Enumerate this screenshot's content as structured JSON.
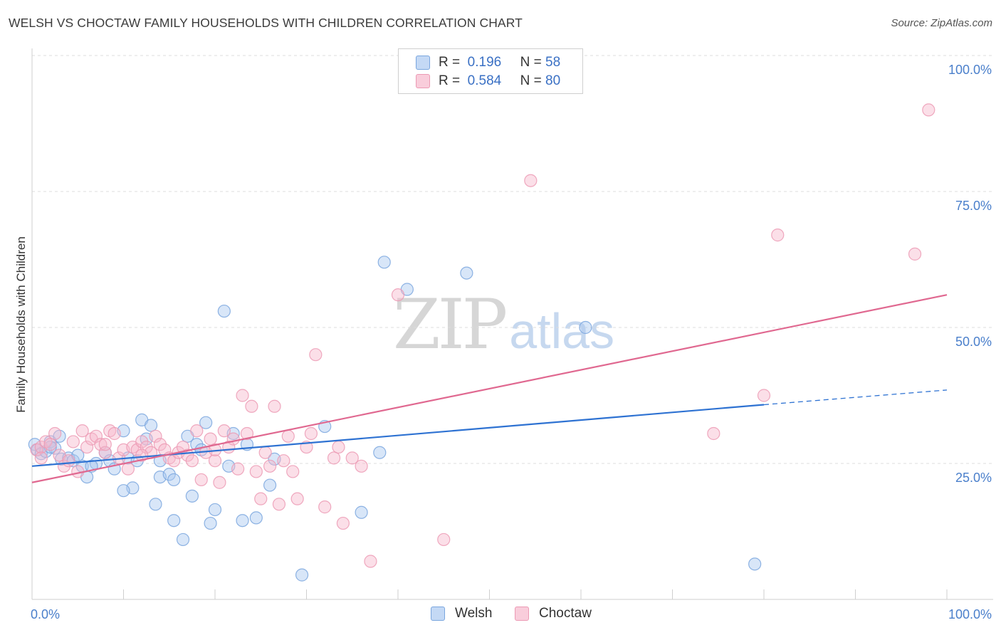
{
  "header": {
    "title": "WELSH VS CHOCTAW FAMILY HOUSEHOLDS WITH CHILDREN CORRELATION CHART",
    "source": "Source: ZipAtlas.com"
  },
  "watermark": {
    "zip": "ZIP",
    "atlas": "atlas"
  },
  "legend": {
    "rows": [
      {
        "r_label": "R =",
        "r_value": "0.196",
        "n_label": "N =",
        "n_value": "58"
      },
      {
        "r_label": "R =",
        "r_value": "0.584",
        "n_label": "N =",
        "n_value": "80"
      }
    ],
    "bottom": [
      "Welsh",
      "Choctaw"
    ]
  },
  "colors": {
    "welsh_fill": "#a9c8f0",
    "welsh_stroke": "#7aa6de",
    "welsh_line": "#2e72d2",
    "choctaw_fill": "#f6b8cb",
    "choctaw_stroke": "#ec9ab4",
    "choctaw_line": "#e06890",
    "grid": "#dcdcdc",
    "tick_text": "#4a7fcb"
  },
  "chart_data": {
    "type": "scatter",
    "title": "WELSH VS CHOCTAW FAMILY HOUSEHOLDS WITH CHILDREN CORRELATION CHART",
    "xlabel": "",
    "ylabel": "Family Households with Children",
    "xlim": [
      0,
      100
    ],
    "ylim": [
      0,
      100
    ],
    "x_tick_labels": [
      "0.0%",
      "100.0%"
    ],
    "y_ticks": [
      25,
      50,
      75,
      100
    ],
    "y_tick_labels": [
      "25.0%",
      "50.0%",
      "75.0%",
      "100.0%"
    ],
    "grid": true,
    "legend_position": "top-center",
    "series": [
      {
        "name": "Welsh",
        "R": 0.196,
        "N": 58,
        "trend": {
          "x": [
            0,
            80
          ],
          "y": [
            24.5,
            35.8
          ],
          "dashed_to": [
            100,
            38.5
          ]
        },
        "points": [
          [
            0.3,
            28.5
          ],
          [
            0.6,
            27.5
          ],
          [
            1.0,
            26.8
          ],
          [
            1.5,
            27.2
          ],
          [
            2.0,
            29.0
          ],
          [
            2.5,
            27.8
          ],
          [
            3.0,
            30.0
          ],
          [
            3.2,
            25.8
          ],
          [
            4.0,
            26.0
          ],
          [
            4.5,
            25.5
          ],
          [
            5.0,
            26.5
          ],
          [
            5.5,
            24.5
          ],
          [
            6.0,
            22.5
          ],
          [
            7.0,
            25.0
          ],
          [
            8.0,
            27.0
          ],
          [
            8.5,
            25.5
          ],
          [
            9.0,
            24.0
          ],
          [
            10.0,
            31.0
          ],
          [
            10.5,
            26.0
          ],
          [
            11.0,
            20.5
          ],
          [
            11.5,
            25.5
          ],
          [
            12.0,
            33.0
          ],
          [
            12.5,
            29.5
          ],
          [
            13.0,
            32.0
          ],
          [
            13.5,
            17.5
          ],
          [
            14.0,
            22.5
          ],
          [
            15.0,
            23.0
          ],
          [
            15.5,
            22.0
          ],
          [
            15.5,
            14.5
          ],
          [
            16.5,
            11.0
          ],
          [
            17.0,
            30.0
          ],
          [
            17.5,
            19.0
          ],
          [
            18.0,
            28.5
          ],
          [
            18.5,
            27.5
          ],
          [
            19.0,
            32.5
          ],
          [
            19.5,
            14.0
          ],
          [
            20.0,
            16.5
          ],
          [
            21.0,
            53.0
          ],
          [
            21.5,
            24.5
          ],
          [
            22.0,
            30.5
          ],
          [
            23.0,
            14.5
          ],
          [
            23.5,
            28.5
          ],
          [
            24.5,
            15.0
          ],
          [
            26.0,
            21.0
          ],
          [
            26.5,
            25.8
          ],
          [
            29.5,
            4.5
          ],
          [
            32.0,
            31.8
          ],
          [
            36.0,
            16.0
          ],
          [
            38.0,
            27.0
          ],
          [
            38.5,
            62.0
          ],
          [
            41.0,
            57.0
          ],
          [
            47.5,
            60.0
          ],
          [
            60.5,
            50.0
          ],
          [
            79.0,
            6.5
          ],
          [
            10.0,
            20.0
          ],
          [
            6.5,
            24.5
          ],
          [
            2.0,
            28.0
          ],
          [
            14.0,
            25.5
          ]
        ]
      },
      {
        "name": "Choctaw",
        "R": 0.584,
        "N": 80,
        "trend": {
          "x": [
            0,
            100
          ],
          "y": [
            21.5,
            56.0
          ]
        },
        "points": [
          [
            0.5,
            27.5
          ],
          [
            1.0,
            28.0
          ],
          [
            1.5,
            29.0
          ],
          [
            2.0,
            28.5
          ],
          [
            2.5,
            30.5
          ],
          [
            3.0,
            26.5
          ],
          [
            3.5,
            24.5
          ],
          [
            4.0,
            25.5
          ],
          [
            4.5,
            29.0
          ],
          [
            5.0,
            23.5
          ],
          [
            5.5,
            31.0
          ],
          [
            6.0,
            28.0
          ],
          [
            6.5,
            29.5
          ],
          [
            7.0,
            30.0
          ],
          [
            7.5,
            28.5
          ],
          [
            8.0,
            27.0
          ],
          [
            8.5,
            31.0
          ],
          [
            9.0,
            30.5
          ],
          [
            9.5,
            26.0
          ],
          [
            10.0,
            27.5
          ],
          [
            10.5,
            24.0
          ],
          [
            11.0,
            28.0
          ],
          [
            11.5,
            27.5
          ],
          [
            12.0,
            29.0
          ],
          [
            12.5,
            28.0
          ],
          [
            13.0,
            27.0
          ],
          [
            13.5,
            30.0
          ],
          [
            14.0,
            28.5
          ],
          [
            14.5,
            27.5
          ],
          [
            15.0,
            26.0
          ],
          [
            15.5,
            25.5
          ],
          [
            16.0,
            27.0
          ],
          [
            16.5,
            28.0
          ],
          [
            17.0,
            26.5
          ],
          [
            17.5,
            25.5
          ],
          [
            18.0,
            31.0
          ],
          [
            18.5,
            22.0
          ],
          [
            19.0,
            27.0
          ],
          [
            19.5,
            29.5
          ],
          [
            20.0,
            25.5
          ],
          [
            20.5,
            21.5
          ],
          [
            21.0,
            31.0
          ],
          [
            21.5,
            28.0
          ],
          [
            22.0,
            29.5
          ],
          [
            22.5,
            24.0
          ],
          [
            23.0,
            37.5
          ],
          [
            23.5,
            30.5
          ],
          [
            24.0,
            35.5
          ],
          [
            24.5,
            23.5
          ],
          [
            25.0,
            18.5
          ],
          [
            25.5,
            27.0
          ],
          [
            26.0,
            24.5
          ],
          [
            26.5,
            35.5
          ],
          [
            27.0,
            17.5
          ],
          [
            27.5,
            25.5
          ],
          [
            28.0,
            30.0
          ],
          [
            28.5,
            23.5
          ],
          [
            29.0,
            18.5
          ],
          [
            30.0,
            28.0
          ],
          [
            30.5,
            30.5
          ],
          [
            31.0,
            45.0
          ],
          [
            32.0,
            17.0
          ],
          [
            33.0,
            26.0
          ],
          [
            33.5,
            28.0
          ],
          [
            34.0,
            14.0
          ],
          [
            35.0,
            26.0
          ],
          [
            36.0,
            24.5
          ],
          [
            37.0,
            7.0
          ],
          [
            40.0,
            56.0
          ],
          [
            45.0,
            11.0
          ],
          [
            54.5,
            77.0
          ],
          [
            74.5,
            30.5
          ],
          [
            80.0,
            37.5
          ],
          [
            81.5,
            67.0
          ],
          [
            96.5,
            63.5
          ],
          [
            98.0,
            90.0
          ],
          [
            1.0,
            26.0
          ],
          [
            8.0,
            28.5
          ],
          [
            12.0,
            26.5
          ],
          [
            20.0,
            27.5
          ]
        ]
      }
    ]
  }
}
